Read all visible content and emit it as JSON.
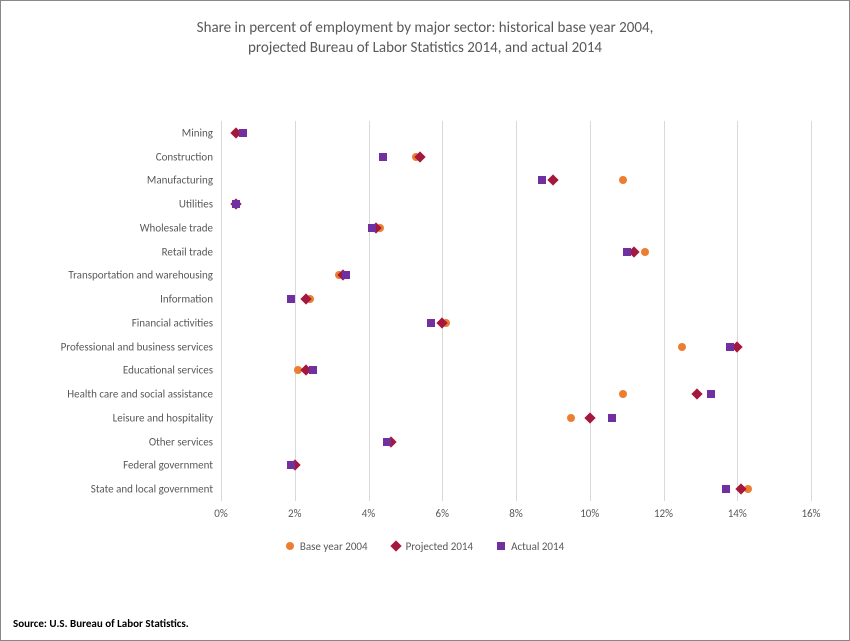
{
  "title_line1": "Share in percent of employment by major sector: historical base year 2004,",
  "title_line2": "projected Bureau of Labor Statistics 2014, and actual 2014",
  "source": "Source: U.S. Bureau of Labor Statistics.",
  "chart": {
    "type": "scatter-categorical",
    "background_color": "#ffffff",
    "grid_color": "#d9d9d9",
    "border_color": "#888888",
    "label_color": "#595959",
    "label_fontsize": 11,
    "title_fontsize": 15,
    "x": {
      "min": 0,
      "max": 16,
      "tick_step": 2,
      "ticks": [
        "0%",
        "2%",
        "4%",
        "6%",
        "8%",
        "10%",
        "12%",
        "14%",
        "16%"
      ]
    },
    "categories": [
      "Mining",
      "Construction",
      "Manufacturing",
      "Utilities",
      "Wholesale trade",
      "Retail trade",
      "Transportation and warehousing",
      "Information",
      "Financial activities",
      "Professional and business services",
      "Educational services",
      "Health care and social assistance",
      "Leisure and hospitality",
      "Other services",
      "Federal government",
      "State and local government"
    ],
    "series": [
      {
        "name": "Base year 2004",
        "marker": "circle",
        "color": "#ed7d31",
        "values": [
          0.4,
          5.3,
          10.9,
          0.4,
          4.3,
          11.5,
          3.2,
          2.4,
          6.1,
          12.5,
          2.1,
          10.9,
          9.5,
          4.6,
          2.0,
          14.3
        ]
      },
      {
        "name": "Projected 2014",
        "marker": "diamond",
        "color": "#a5183d",
        "values": [
          0.4,
          5.4,
          9.0,
          0.4,
          4.2,
          11.2,
          3.3,
          2.3,
          6.0,
          14.0,
          2.3,
          12.9,
          10.0,
          4.6,
          2.0,
          14.1
        ]
      },
      {
        "name": "Actual 2014",
        "marker": "square",
        "color": "#7030a0",
        "values": [
          0.6,
          4.4,
          8.7,
          0.4,
          4.1,
          11.0,
          3.4,
          1.9,
          5.7,
          13.8,
          2.5,
          13.3,
          10.6,
          4.5,
          1.9,
          13.7
        ]
      }
    ],
    "legend": [
      {
        "label": "Base year 2004",
        "marker": "circle",
        "color": "#ed7d31"
      },
      {
        "label": "Projected 2014",
        "marker": "diamond",
        "color": "#a5183d"
      },
      {
        "label": "Actual 2014",
        "marker": "square",
        "color": "#7030a0"
      }
    ]
  }
}
